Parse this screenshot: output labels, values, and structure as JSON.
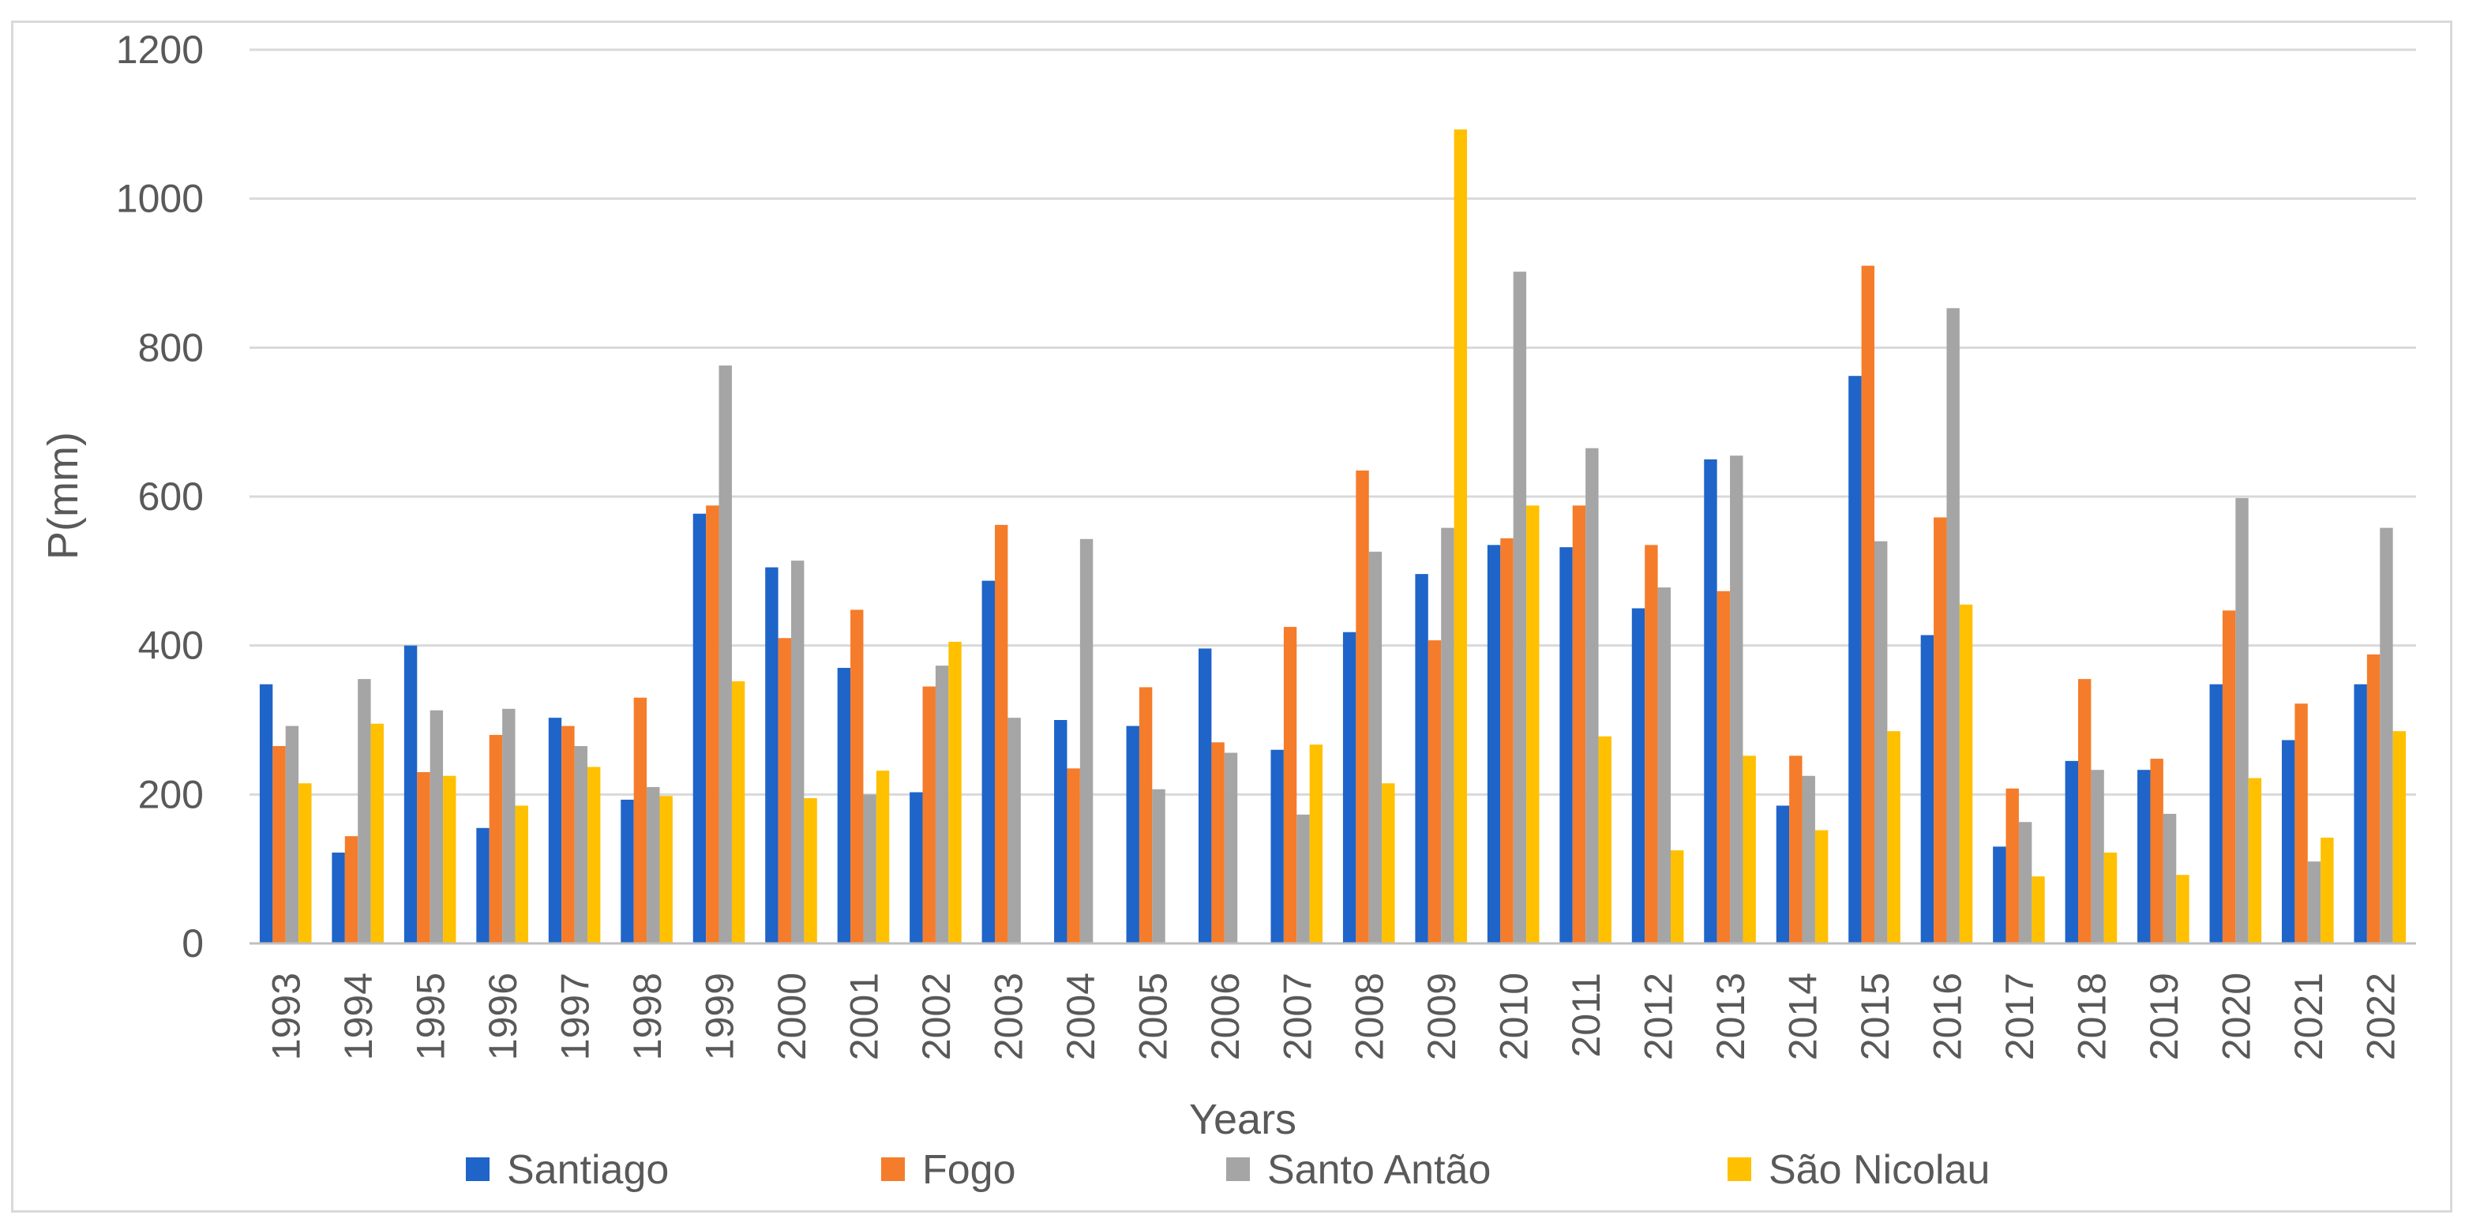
{
  "chart_data": {
    "type": "bar",
    "title": "",
    "xlabel": "Years",
    "ylabel": "P(mm)",
    "ylim": [
      0,
      1200
    ],
    "yticks": [
      0,
      200,
      400,
      600,
      800,
      1000,
      1200
    ],
    "grid": true,
    "legend_position": "bottom",
    "categories": [
      "1993",
      "1994",
      "1995",
      "1996",
      "1997",
      "1998",
      "1999",
      "2000",
      "2001",
      "2002",
      "2003",
      "2004",
      "2005",
      "2006",
      "2007",
      "2008",
      "2009",
      "2010",
      "2011",
      "2012",
      "2013",
      "2014",
      "2015",
      "2016",
      "2017",
      "2018",
      "2019",
      "2020",
      "2021",
      "2022"
    ],
    "series": [
      {
        "name": "Santiago",
        "color": "#1f64c8",
        "values": [
          348,
          122,
          400,
          155,
          303,
          193,
          577,
          505,
          370,
          203,
          487,
          300,
          292,
          396,
          260,
          418,
          496,
          535,
          532,
          450,
          650,
          185,
          762,
          414,
          130,
          245,
          233,
          348,
          273,
          348
        ]
      },
      {
        "name": "Fogo",
        "color": "#f57c2b",
        "values": [
          265,
          144,
          230,
          280,
          292,
          330,
          588,
          410,
          448,
          345,
          562,
          235,
          344,
          270,
          425,
          635,
          407,
          544,
          588,
          535,
          473,
          252,
          910,
          572,
          208,
          355,
          248,
          447,
          322,
          388
        ]
      },
      {
        "name": "Santo Antão",
        "color": "#a5a5a5",
        "values": [
          292,
          355,
          313,
          315,
          265,
          210,
          776,
          514,
          200,
          373,
          303,
          543,
          207,
          256,
          173,
          526,
          558,
          902,
          665,
          478,
          655,
          225,
          540,
          853,
          163,
          233,
          174,
          598,
          110,
          558
        ]
      },
      {
        "name": "São Nicolau",
        "color": "#ffc000",
        "values": [
          215,
          295,
          225,
          185,
          237,
          198,
          352,
          195,
          232,
          405,
          0,
          0,
          0,
          0,
          267,
          215,
          1093,
          588,
          278,
          125,
          252,
          152,
          285,
          455,
          90,
          122,
          92,
          222,
          142,
          285
        ]
      }
    ]
  }
}
